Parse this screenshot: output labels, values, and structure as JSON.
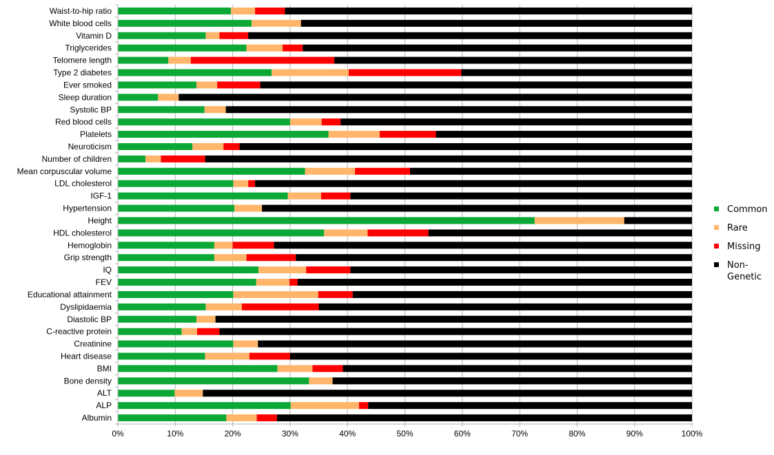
{
  "chart_data": {
    "type": "bar",
    "orientation": "horizontal",
    "stacked": "percent",
    "title": "",
    "xlabel": "",
    "ylabel": "",
    "xlim": [
      0,
      100
    ],
    "x_ticks": [
      "0%",
      "10%",
      "20%",
      "30%",
      "40%",
      "50%",
      "60%",
      "70%",
      "80%",
      "90%",
      "100%"
    ],
    "grid": true,
    "legend_position": "right",
    "categories": [
      "Waist-to-hip ratio",
      "White blood cells",
      "Vitamin D",
      "Triglycerides",
      "Telomere length",
      "Type 2 diabetes",
      "Ever smoked",
      "Sleep duration",
      "Systolic BP",
      "Red blood cells",
      "Platelets",
      "Neuroticism",
      "Number of children",
      "Mean corpuscular volume",
      "LDL cholesterol",
      "IGF-1",
      "Hypertension",
      "Height",
      "HDL cholesterol",
      "Hemoglobin",
      "Grip strength",
      "IQ",
      "FEV",
      "Educational attainment",
      "Dyslipidaemia",
      "Diastolic BP",
      "C-reactive protein",
      "Creatinine",
      "Heart disease",
      "BMI",
      "Bone density",
      "ALT",
      "ALP",
      "Albumin"
    ],
    "series": [
      {
        "name": "Common",
        "color": "#0ca835",
        "values": [
          19.7,
          23.3,
          15.3,
          22.4,
          8.8,
          26.8,
          13.7,
          7.0,
          15.1,
          30.0,
          36.7,
          13.0,
          4.8,
          32.6,
          20.1,
          29.6,
          20.3,
          72.6,
          35.9,
          16.8,
          16.8,
          24.5,
          24.1,
          20.1,
          15.3,
          13.7,
          11.1,
          20.1,
          15.2,
          27.8,
          33.3,
          9.9,
          30.1,
          18.9
        ]
      },
      {
        "name": "Rare",
        "color": "#ffb66b",
        "values": [
          4.2,
          8.6,
          2.4,
          6.3,
          3.9,
          13.4,
          3.6,
          3.6,
          3.7,
          5.5,
          8.9,
          5.4,
          2.7,
          8.7,
          2.6,
          5.8,
          4.8,
          15.6,
          7.6,
          3.2,
          5.6,
          8.3,
          5.8,
          14.8,
          6.3,
          3.3,
          2.7,
          4.3,
          7.7,
          6.1,
          4.1,
          4.9,
          11.9,
          5.3
        ]
      },
      {
        "name": "Missing",
        "color": "#ff0000",
        "values": [
          5.2,
          0.0,
          5.0,
          3.5,
          25.0,
          19.6,
          7.5,
          0.0,
          0.0,
          3.3,
          9.8,
          2.8,
          7.7,
          9.6,
          1.2,
          5.1,
          0.0,
          0.0,
          10.6,
          7.2,
          8.6,
          7.7,
          1.4,
          6.0,
          13.4,
          0.0,
          3.9,
          0.0,
          7.1,
          5.3,
          0.0,
          0.0,
          1.6,
          3.5
        ]
      },
      {
        "name": "Non-\nGenetic",
        "color": "#000000",
        "values": [
          70.9,
          68.1,
          77.3,
          67.8,
          62.3,
          40.2,
          75.2,
          89.4,
          81.2,
          61.2,
          44.6,
          78.8,
          84.8,
          49.1,
          76.1,
          59.5,
          74.9,
          11.8,
          45.9,
          72.8,
          69.0,
          59.5,
          68.7,
          59.1,
          65.0,
          83.0,
          82.3,
          75.6,
          70.0,
          60.8,
          62.6,
          85.2,
          56.4,
          72.3
        ]
      }
    ]
  }
}
